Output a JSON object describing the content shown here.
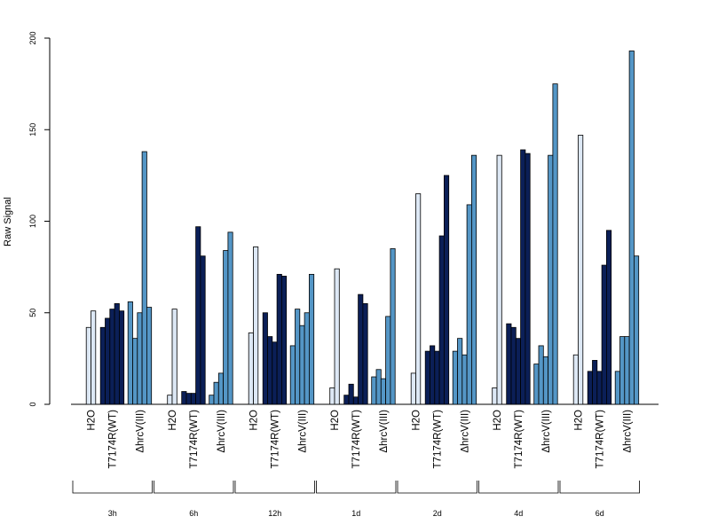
{
  "chart_data": {
    "type": "bar",
    "title": "",
    "xlabel": "",
    "ylabel": "Raw Signal",
    "ylim": [
      0,
      200
    ],
    "y_ticks": [
      0,
      50,
      100,
      150,
      200
    ],
    "grid": false,
    "legend": null,
    "timepoints": [
      "3h",
      "6h",
      "12h",
      "1d",
      "2d",
      "4d",
      "6d"
    ],
    "treatments": [
      {
        "label": "H2O",
        "color": "#dde8f5"
      },
      {
        "label": "T7174R(WT)",
        "color": "#0b1f57"
      },
      {
        "label": "ΔhrcV(III)",
        "color": "#5496c6"
      }
    ],
    "values": {
      "3h": {
        "H2O": [
          42,
          51
        ],
        "T7174R(WT)": [
          42,
          47,
          52,
          55,
          51
        ],
        "ΔhrcV(III)": [
          56,
          36,
          50,
          138,
          53
        ]
      },
      "6h": {
        "H2O": [
          5,
          52
        ],
        "T7174R(WT)": [
          7,
          6,
          6,
          97,
          81
        ],
        "ΔhrcV(III)": [
          5,
          12,
          17,
          84,
          94
        ]
      },
      "12h": {
        "H2O": [
          39,
          86
        ],
        "T7174R(WT)": [
          50,
          37,
          34,
          71,
          70
        ],
        "ΔhrcV(III)": [
          32,
          52,
          43,
          50,
          71
        ]
      },
      "1d": {
        "H2O": [
          9,
          74
        ],
        "T7174R(WT)": [
          5,
          11,
          4,
          60,
          55
        ],
        "ΔhrcV(III)": [
          15,
          19,
          14,
          48,
          85
        ]
      },
      "2d": {
        "H2O": [
          17,
          115
        ],
        "T7174R(WT)": [
          29,
          32,
          29,
          92,
          125
        ],
        "ΔhrcV(III)": [
          29,
          36,
          27,
          109,
          136
        ]
      },
      "4d": {
        "H2O": [
          9,
          136
        ],
        "T7174R(WT)": [
          44,
          42,
          36,
          139,
          137
        ],
        "ΔhrcV(III)": [
          22,
          32,
          26,
          136,
          175
        ]
      },
      "6d": {
        "H2O": [
          27,
          147
        ],
        "T7174R(WT)": [
          18,
          24,
          18,
          76,
          95
        ],
        "ΔhrcV(III)": [
          18,
          37,
          37,
          193,
          81
        ]
      }
    }
  }
}
